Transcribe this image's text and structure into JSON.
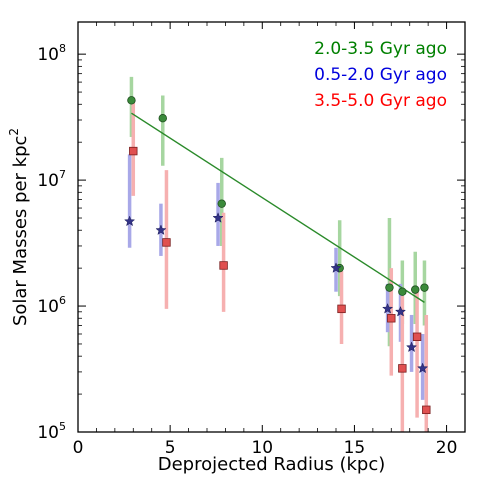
{
  "chart_data": {
    "type": "scatter",
    "xlabel": "Deprojected Radius (kpc)",
    "ylabel": "Solar Masses per kpc",
    "ylabel_sup": "2",
    "xlim": [
      0,
      21
    ],
    "ylim": [
      100000,
      180000000
    ],
    "y_scale": "log",
    "grid": false,
    "legend_placement": "top-right",
    "x_ticks": [
      {
        "value": 0,
        "label": "0"
      },
      {
        "value": 5,
        "label": "5"
      },
      {
        "value": 10,
        "label": "10"
      },
      {
        "value": 15,
        "label": "15"
      },
      {
        "value": 20,
        "label": "20"
      }
    ],
    "y_ticks": [
      {
        "value": 100000,
        "base": "10",
        "exp": "5"
      },
      {
        "value": 1000000,
        "base": "10",
        "exp": "6"
      },
      {
        "value": 10000000,
        "base": "10",
        "exp": "7"
      },
      {
        "value": 100000000,
        "base": "10",
        "exp": "8"
      }
    ],
    "series": [
      {
        "name": "2.0-3.5 Gyr ago",
        "marker": "circle",
        "color": "#3a8a3a",
        "legend_color": "#008000",
        "errcolor": "#a6d6a0",
        "points": [
          {
            "x": 2.9,
            "y": 43000000,
            "lo": 22000000,
            "hi": 66000000
          },
          {
            "x": 4.6,
            "y": 31000000,
            "lo": 13000000,
            "hi": 47000000
          },
          {
            "x": 7.8,
            "y": 6500000,
            "lo": 3000000,
            "hi": 15000000
          },
          {
            "x": 14.2,
            "y": 2000000,
            "lo": 1200000,
            "hi": 4800000
          },
          {
            "x": 16.9,
            "y": 1400000,
            "lo": 480000,
            "hi": 5000000
          },
          {
            "x": 17.6,
            "y": 1300000,
            "lo": 720000,
            "hi": 2300000
          },
          {
            "x": 18.3,
            "y": 1350000,
            "lo": 720000,
            "hi": 2700000
          },
          {
            "x": 18.8,
            "y": 1400000,
            "lo": 700000,
            "hi": 2300000
          }
        ]
      },
      {
        "name": "0.5-2.0 Gyr ago",
        "marker": "star",
        "color": "#333388",
        "legend_color": "#0000dd",
        "errcolor": "#a8a8e8",
        "points": [
          {
            "x": 2.8,
            "y": 4700000,
            "lo": 2900000,
            "hi": 16000000
          },
          {
            "x": 4.5,
            "y": 4000000,
            "lo": 2500000,
            "hi": 6500000
          },
          {
            "x": 7.6,
            "y": 5000000,
            "lo": 3000000,
            "hi": 9500000
          },
          {
            "x": 14.0,
            "y": 2000000,
            "lo": 1300000,
            "hi": 2900000
          },
          {
            "x": 16.8,
            "y": 950000,
            "lo": 620000,
            "hi": 1500000
          },
          {
            "x": 17.5,
            "y": 900000,
            "lo": 520000,
            "hi": 1500000
          },
          {
            "x": 18.1,
            "y": 470000,
            "lo": 300000,
            "hi": 850000
          },
          {
            "x": 18.7,
            "y": 320000,
            "lo": 180000,
            "hi": 600000
          }
        ]
      },
      {
        "name": "3.5-5.0 Gyr ago",
        "marker": "square",
        "color": "#e05050",
        "legend_color": "#ff0000",
        "errcolor": "#f6b0b0",
        "points": [
          {
            "x": 3.0,
            "y": 17000000,
            "lo": 7500000,
            "hi": 45000000
          },
          {
            "x": 4.8,
            "y": 3200000,
            "lo": 950000,
            "hi": 12000000
          },
          {
            "x": 7.9,
            "y": 2100000,
            "lo": 900000,
            "hi": 5500000
          },
          {
            "x": 14.3,
            "y": 950000,
            "lo": 500000,
            "hi": 1900000
          },
          {
            "x": 17.0,
            "y": 800000,
            "lo": 280000,
            "hi": 2000000
          },
          {
            "x": 17.6,
            "y": 320000,
            "lo": 100000,
            "hi": 1200000
          },
          {
            "x": 18.4,
            "y": 570000,
            "lo": 130000,
            "hi": 1300000
          },
          {
            "x": 18.9,
            "y": 150000,
            "lo": 100000,
            "hi": 850000
          }
        ]
      }
    ],
    "fit_line": {
      "color": "#2a8a2a",
      "x": [
        2.9,
        18.8
      ],
      "y": [
        34000000,
        1070000
      ]
    }
  }
}
